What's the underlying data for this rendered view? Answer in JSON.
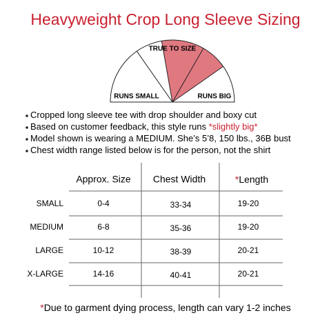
{
  "title": "Heavyweight Crop Long Sleeve Sizing",
  "gauge": {
    "center_label": "TRUE TO SIZE",
    "left_label": "RUNS SMALL",
    "right_label": "RUNS BIG"
  },
  "bullets": [
    [
      "Cropped long sleeve tee with drop shoulder and boxy cut"
    ],
    [
      "Based on customer feedback, this style runs ",
      "*slightly big*"
    ],
    [
      "Model shown is wearing a MEDIUM. She’s 5’8, 150 lbs., 36B bust"
    ],
    [
      "Chest width range listed below is for the person, not the shirt"
    ]
  ],
  "table": {
    "headers": [
      "Approx. Size",
      "Chest Width",
      "*",
      "Length"
    ],
    "rows": [
      [
        "SMALL",
        "0-4",
        "33-34",
        "19-20"
      ],
      [
        "MEDIUM",
        "6-8",
        "35-36",
        "19-20"
      ],
      [
        "LARGE",
        "10-12",
        "38-39",
        "20-21"
      ],
      [
        "X-LARGE",
        "14-16",
        "40-41",
        "20-21"
      ]
    ]
  },
  "footnote": [
    "*",
    "Due to garment dying process, length can vary 1-2 inches"
  ]
}
